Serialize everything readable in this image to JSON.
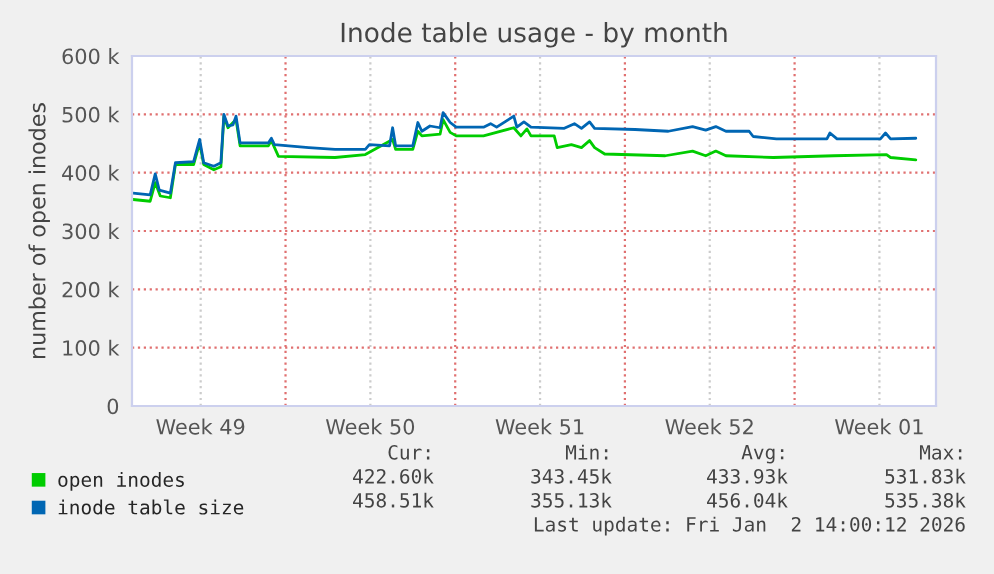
{
  "chart_data": {
    "type": "line",
    "title": "Inode table usage - by month",
    "ylabel": "number of open inodes",
    "xlim": [
      "2025-12-01T16:00",
      "2026-01-03T20:00"
    ],
    "xticks": [
      {
        "value": "2025-12-04T12:00",
        "label": "Week 49"
      },
      {
        "value": "2025-12-08T00:00",
        "label": null
      },
      {
        "value": "2025-12-11T12:00",
        "label": "Week 50"
      },
      {
        "value": "2025-12-15T00:00",
        "label": null
      },
      {
        "value": "2025-12-18T12:00",
        "label": "Week 51"
      },
      {
        "value": "2025-12-22T00:00",
        "label": null
      },
      {
        "value": "2025-12-25T12:00",
        "label": "Week 52"
      },
      {
        "value": "2025-12-29T00:00",
        "label": null
      },
      {
        "value": "2026-01-01T12:00",
        "label": "Week 01"
      }
    ],
    "ylim": [
      0,
      600000
    ],
    "yticks": [
      0,
      {
        "value": 100000,
        "label": "100 k"
      },
      {
        "value": 200000,
        "label": "200 k"
      },
      {
        "value": 300000,
        "label": "300 k"
      },
      {
        "value": 400000,
        "label": "400 k"
      },
      {
        "value": 500000,
        "label": "500 k"
      },
      {
        "value": 600000,
        "label": "600 k"
      }
    ],
    "grid": true,
    "legend": "bottom",
    "series": [
      {
        "name": "open inodes",
        "color": "#00cc00",
        "x": [
          "2025-12-01T17:00",
          "2025-12-02T10:00",
          "2025-12-02T15:00",
          "2025-12-02T20:00",
          "2025-12-03T06:00",
          "2025-12-03T11:00",
          "2025-12-04T05:00",
          "2025-12-04T11:00",
          "2025-12-04T15:00",
          "2025-12-05T01:00",
          "2025-12-05T08:00",
          "2025-12-05T11:00",
          "2025-12-05T15:00",
          "2025-12-05T23:00",
          "2025-12-06T03:00",
          "2025-12-07T07:00",
          "2025-12-07T10:00",
          "2025-12-07T17:00",
          "2025-12-10T01:00",
          "2025-12-11T07:00",
          "2025-12-12T10:00",
          "2025-12-12T13:00",
          "2025-12-13T06:00",
          "2025-12-13T11:00",
          "2025-12-13T15:00",
          "2025-12-14T09:00",
          "2025-12-14T12:00",
          "2025-12-14T19:00",
          "2025-12-15T01:00",
          "2025-12-16T04:00",
          "2025-12-17T10:00",
          "2025-12-17T17:00",
          "2025-12-17T23:00",
          "2025-12-18T03:00",
          "2025-12-19T02:00",
          "2025-12-19T05:00",
          "2025-12-19T19:00",
          "2025-12-20T05:00",
          "2025-12-20T13:00",
          "2025-12-20T18:00",
          "2025-12-21T04:00",
          "2025-12-23T16:00",
          "2025-12-24T19:00",
          "2025-12-25T08:00",
          "2025-12-25T18:00",
          "2025-12-26T04:00",
          "2025-12-28T03:00",
          "2025-12-30T15:00",
          "2026-01-01T19:00",
          "2026-01-01T23:00",
          "2026-01-03T00:00"
        ],
        "values": [
          354000,
          351000,
          383000,
          360000,
          357000,
          414000,
          414000,
          451000,
          414000,
          405000,
          410000,
          497000,
          477000,
          491000,
          446000,
          446000,
          455000,
          428000,
          426000,
          431000,
          457000,
          440000,
          440000,
          471000,
          463000,
          466000,
          491000,
          469000,
          463000,
          463000,
          477000,
          463000,
          475000,
          463000,
          463000,
          443000,
          448000,
          443000,
          455000,
          443000,
          432000,
          429000,
          437000,
          429000,
          437000,
          429000,
          426000,
          429000,
          431000,
          426000,
          422000
        ]
      },
      {
        "name": "inode table size",
        "color": "#0066b3",
        "x": [
          "2025-12-01T17:00",
          "2025-12-02T10:00",
          "2025-12-02T15:00",
          "2025-12-02T19:00",
          "2025-12-03T06:00",
          "2025-12-03T11:00",
          "2025-12-04T05:00",
          "2025-12-04T11:00",
          "2025-12-04T15:00",
          "2025-12-05T01:00",
          "2025-12-05T08:00",
          "2025-12-05T11:00",
          "2025-12-05T15:00",
          "2025-12-05T20:00",
          "2025-12-05T23:00",
          "2025-12-06T03:00",
          "2025-12-07T07:00",
          "2025-12-07T10:00",
          "2025-12-07T13:00",
          "2025-12-08T03:00",
          "2025-12-08T23:00",
          "2025-12-10T01:00",
          "2025-12-11T07:00",
          "2025-12-11T11:00",
          "2025-12-12T07:00",
          "2025-12-12T10:00",
          "2025-12-12T13:00",
          "2025-12-13T06:00",
          "2025-12-13T11:00",
          "2025-12-13T15:00",
          "2025-12-13T23:00",
          "2025-12-14T09:00",
          "2025-12-14T12:00",
          "2025-12-14T19:00",
          "2025-12-15T01:00",
          "2025-12-16T04:00",
          "2025-12-16T11:00",
          "2025-12-16T17:00",
          "2025-12-17T10:00",
          "2025-12-17T13:00",
          "2025-12-17T20:00",
          "2025-12-18T03:00",
          "2025-12-19T12:00",
          "2025-12-19T22:00",
          "2025-12-20T05:00",
          "2025-12-20T13:00",
          "2025-12-20T18:00",
          "2025-12-22T10:00",
          "2025-12-23T19:00",
          "2025-12-24T19:00",
          "2025-12-25T08:00",
          "2025-12-25T18:00",
          "2025-12-26T04:00",
          "2025-12-27T03:00",
          "2025-12-27T07:00",
          "2025-12-28T06:00",
          "2025-12-30T08:00",
          "2025-12-30T11:00",
          "2025-12-30T18:00",
          "2026-01-01T13:00",
          "2026-01-01T18:00",
          "2026-01-01T23:00",
          "2026-01-03T00:00"
        ],
        "values": [
          365000,
          362000,
          398000,
          370000,
          365000,
          417000,
          419000,
          457000,
          417000,
          411000,
          417000,
          500000,
          480000,
          482000,
          497000,
          451000,
          451000,
          459000,
          448000,
          446000,
          443000,
          440000,
          440000,
          448000,
          446000,
          477000,
          446000,
          446000,
          486000,
          471000,
          480000,
          477000,
          503000,
          486000,
          478000,
          478000,
          484000,
          478000,
          497000,
          478000,
          487000,
          478000,
          476000,
          484000,
          476000,
          487000,
          476000,
          474000,
          471000,
          479000,
          473000,
          479000,
          471000,
          471000,
          462000,
          458000,
          458000,
          468000,
          458000,
          458000,
          468000,
          458000,
          459000
        ]
      }
    ],
    "annotations": [
      "Cur:",
      "Min:",
      "Avg:",
      "Max:",
      "422.60k",
      "343.45k",
      "433.93k",
      "531.83k",
      "458.51k",
      "355.13k",
      "456.04k",
      "535.38k",
      "Last update: Fri Jan  2 14:00:12 2026"
    ]
  }
}
